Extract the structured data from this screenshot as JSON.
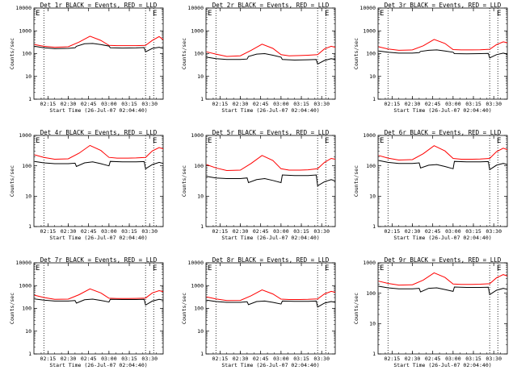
{
  "figure": {
    "colors": {
      "events": "#000000",
      "lld": "#ff0000",
      "axes": "#000000",
      "background": "#ffffff"
    }
  },
  "chart_data": [
    {
      "type": "line",
      "title": "Det 1r BLACK = Events, RED = LLD",
      "xlabel": "Start Time (26-Jul-07 02:04:40)",
      "ylabel": "Counts/sec",
      "yscale": "log",
      "ylim": [
        1,
        10000
      ],
      "y_ticks": [
        "1",
        "10",
        "100",
        "1000",
        "10000"
      ],
      "x_ticks": [
        "02:15",
        "02:30",
        "02:45",
        "03:00",
        "03:15",
        "03:30"
      ],
      "x_tick_minutes": [
        15,
        30,
        45,
        60,
        75,
        90
      ],
      "xlim_minutes": [
        4.67,
        100
      ],
      "dotted_lines_minutes": [
        12,
        87,
        93
      ],
      "annotation": "E",
      "series": [
        {
          "name": "LLD",
          "color": "#ff0000",
          "x_minutes": [
            5,
            12,
            20,
            30,
            38,
            46,
            54,
            60,
            66,
            74,
            80,
            87,
            92,
            97,
            100
          ],
          "y": [
            250,
            210,
            190,
            200,
            320,
            580,
            380,
            230,
            225,
            225,
            225,
            230,
            380,
            560,
            410
          ]
        },
        {
          "name": "Events",
          "color": "#000000",
          "x_minutes": [
            5,
            12,
            20,
            30,
            35,
            36,
            42,
            48,
            54,
            60,
            61,
            70,
            80,
            86,
            87,
            92,
            97,
            100
          ],
          "y": [
            210,
            180,
            165,
            170,
            180,
            210,
            270,
            280,
            250,
            215,
            180,
            175,
            178,
            185,
            120,
            170,
            190,
            170
          ]
        }
      ]
    },
    {
      "type": "line",
      "title": "Det 2r BLACK = Events, RED = LLD",
      "xlabel": "Start Time (26-Jul-07 02:04:40)",
      "ylabel": "Counts/sec",
      "yscale": "log",
      "ylim": [
        1,
        10000
      ],
      "y_ticks": [
        "1",
        "10",
        "100",
        "1000",
        "10000"
      ],
      "x_ticks": [
        "02:15",
        "02:30",
        "02:45",
        "03:00",
        "03:15",
        "03:30"
      ],
      "x_tick_minutes": [
        15,
        30,
        45,
        60,
        75,
        90
      ],
      "xlim_minutes": [
        4.67,
        100
      ],
      "dotted_lines_minutes": [
        12,
        87,
        93
      ],
      "annotation": "E",
      "series": [
        {
          "name": "LLD",
          "color": "#ff0000",
          "x_minutes": [
            5,
            12,
            20,
            30,
            38,
            46,
            54,
            60,
            66,
            74,
            80,
            87,
            92,
            97,
            100
          ],
          "y": [
            120,
            95,
            75,
            80,
            140,
            260,
            170,
            90,
            80,
            82,
            85,
            90,
            160,
            210,
            190
          ]
        },
        {
          "name": "Events",
          "color": "#000000",
          "x_minutes": [
            5,
            12,
            20,
            30,
            35,
            36,
            42,
            48,
            54,
            60,
            61,
            70,
            80,
            86,
            87,
            92,
            97,
            100
          ],
          "y": [
            70,
            60,
            55,
            55,
            58,
            75,
            95,
            100,
            85,
            70,
            55,
            52,
            54,
            55,
            35,
            50,
            60,
            55
          ]
        }
      ]
    },
    {
      "type": "line",
      "title": "Det 3r BLACK = Events, RED = LLD",
      "xlabel": "Start Time (26-Jul-07 02:04:40)",
      "ylabel": "Counts/sec",
      "yscale": "log",
      "ylim": [
        1,
        10000
      ],
      "y_ticks": [
        "1",
        "10",
        "100",
        "1000",
        "10000"
      ],
      "x_ticks": [
        "02:15",
        "02:30",
        "02:45",
        "03:00",
        "03:15",
        "03:30"
      ],
      "x_tick_minutes": [
        15,
        30,
        45,
        60,
        75,
        90
      ],
      "xlim_minutes": [
        4.67,
        100
      ],
      "dotted_lines_minutes": [
        12,
        87,
        93
      ],
      "annotation": "E",
      "series": [
        {
          "name": "LLD",
          "color": "#ff0000",
          "x_minutes": [
            5,
            12,
            20,
            30,
            38,
            46,
            54,
            60,
            66,
            74,
            80,
            87,
            92,
            97,
            100
          ],
          "y": [
            200,
            160,
            140,
            145,
            220,
            420,
            280,
            150,
            145,
            145,
            148,
            155,
            250,
            330,
            300
          ]
        },
        {
          "name": "Events",
          "color": "#000000",
          "x_minutes": [
            5,
            12,
            20,
            30,
            35,
            36,
            42,
            48,
            54,
            60,
            61,
            70,
            80,
            86,
            87,
            92,
            97,
            100
          ],
          "y": [
            130,
            115,
            105,
            105,
            110,
            125,
            140,
            145,
            130,
            115,
            100,
            98,
            100,
            102,
            65,
            90,
            105,
            95
          ]
        }
      ]
    },
    {
      "type": "line",
      "title": "Det 4r BLACK = Events, RED = LLD",
      "xlabel": "Start Time (26-Jul-07 02:04:40)",
      "ylabel": "Counts/sec",
      "yscale": "log",
      "ylim": [
        1,
        1000
      ],
      "y_ticks": [
        "1",
        "10",
        "100",
        "1000"
      ],
      "x_ticks": [
        "02:15",
        "02:30",
        "02:45",
        "03:00",
        "03:15",
        "03:30"
      ],
      "x_tick_minutes": [
        15,
        30,
        45,
        60,
        75,
        90
      ],
      "xlim_minutes": [
        4.67,
        100
      ],
      "dotted_lines_minutes": [
        12,
        87,
        93
      ],
      "annotation": "E",
      "series": [
        {
          "name": "LLD",
          "color": "#ff0000",
          "x_minutes": [
            5,
            12,
            20,
            30,
            38,
            46,
            54,
            60,
            66,
            74,
            80,
            87,
            92,
            97,
            100
          ],
          "y": [
            230,
            190,
            165,
            170,
            260,
            470,
            320,
            190,
            180,
            180,
            182,
            190,
            310,
            400,
            360
          ]
        },
        {
          "name": "Events",
          "color": "#000000",
          "x_minutes": [
            5,
            12,
            20,
            30,
            35,
            36,
            42,
            48,
            54,
            60,
            61,
            70,
            80,
            86,
            87,
            92,
            97,
            100
          ],
          "y": [
            140,
            125,
            118,
            118,
            122,
            95,
            125,
            135,
            118,
            100,
            140,
            135,
            135,
            138,
            80,
            110,
            130,
            120
          ]
        }
      ]
    },
    {
      "type": "line",
      "title": "Det 5r BLACK = Events, RED = LLD",
      "xlabel": "Start Time (26-Jul-07 02:04:40)",
      "ylabel": "Counts/sec",
      "yscale": "log",
      "ylim": [
        1,
        1000
      ],
      "y_ticks": [
        "1",
        "10",
        "100",
        "1000"
      ],
      "x_ticks": [
        "02:15",
        "02:30",
        "02:45",
        "03:00",
        "03:15",
        "03:30"
      ],
      "x_tick_minutes": [
        15,
        30,
        45,
        60,
        75,
        90
      ],
      "xlim_minutes": [
        4.67,
        100
      ],
      "dotted_lines_minutes": [
        12,
        87,
        93
      ],
      "annotation": "E",
      "series": [
        {
          "name": "LLD",
          "color": "#ff0000",
          "x_minutes": [
            5,
            12,
            20,
            30,
            38,
            46,
            54,
            60,
            66,
            74,
            80,
            87,
            92,
            97,
            100
          ],
          "y": [
            110,
            85,
            70,
            72,
            120,
            220,
            150,
            80,
            72,
            72,
            74,
            80,
            130,
            175,
            165
          ]
        },
        {
          "name": "Events",
          "color": "#000000",
          "x_minutes": [
            5,
            12,
            20,
            30,
            35,
            36,
            42,
            48,
            54,
            60,
            61,
            70,
            80,
            86,
            87,
            92,
            97,
            100
          ],
          "y": [
            45,
            40,
            38,
            38,
            40,
            28,
            35,
            38,
            33,
            28,
            50,
            48,
            48,
            50,
            22,
            30,
            35,
            32
          ]
        }
      ]
    },
    {
      "type": "line",
      "title": "Det 6r BLACK = Events, RED = LLD",
      "xlabel": "Start Time (26-Jul-07 02:04:40)",
      "ylabel": "Counts/sec",
      "yscale": "log",
      "ylim": [
        1,
        1000
      ],
      "y_ticks": [
        "1",
        "10",
        "100",
        "1000"
      ],
      "x_ticks": [
        "02:15",
        "02:30",
        "02:45",
        "03:00",
        "03:15",
        "03:30"
      ],
      "x_tick_minutes": [
        15,
        30,
        45,
        60,
        75,
        90
      ],
      "xlim_minutes": [
        4.67,
        100
      ],
      "dotted_lines_minutes": [
        12,
        87,
        93
      ],
      "annotation": "E",
      "series": [
        {
          "name": "LLD",
          "color": "#ff0000",
          "x_minutes": [
            5,
            12,
            20,
            30,
            38,
            46,
            54,
            60,
            66,
            74,
            80,
            87,
            92,
            97,
            100
          ],
          "y": [
            220,
            180,
            155,
            160,
            250,
            460,
            310,
            175,
            165,
            165,
            168,
            175,
            290,
            380,
            340
          ]
        },
        {
          "name": "Events",
          "color": "#000000",
          "x_minutes": [
            5,
            12,
            20,
            30,
            35,
            36,
            42,
            48,
            54,
            60,
            61,
            70,
            80,
            86,
            87,
            92,
            97,
            100
          ],
          "y": [
            150,
            130,
            120,
            120,
            125,
            85,
            105,
            110,
            95,
            80,
            140,
            135,
            135,
            138,
            75,
            105,
            120,
            110
          ]
        }
      ]
    },
    {
      "type": "line",
      "title": "Det 7r BLACK = Events, RED = LLD",
      "xlabel": "Start Time (26-Jul-07 02:04:40)",
      "ylabel": "Counts/sec",
      "yscale": "log",
      "ylim": [
        1,
        10000
      ],
      "y_ticks": [
        "1",
        "10",
        "100",
        "1000",
        "10000"
      ],
      "x_ticks": [
        "02:15",
        "02:30",
        "02:45",
        "03:00",
        "03:15",
        "03:30"
      ],
      "x_tick_minutes": [
        15,
        30,
        45,
        60,
        75,
        90
      ],
      "xlim_minutes": [
        4.67,
        100
      ],
      "dotted_lines_minutes": [
        12,
        87,
        93
      ],
      "annotation": "E",
      "series": [
        {
          "name": "LLD",
          "color": "#ff0000",
          "x_minutes": [
            5,
            12,
            20,
            30,
            38,
            46,
            54,
            60,
            66,
            74,
            80,
            87,
            92,
            97,
            100
          ],
          "y": [
            380,
            300,
            250,
            255,
            400,
            720,
            480,
            280,
            270,
            270,
            275,
            285,
            480,
            600,
            550
          ]
        },
        {
          "name": "Events",
          "color": "#000000",
          "x_minutes": [
            5,
            12,
            20,
            30,
            35,
            36,
            42,
            48,
            54,
            60,
            61,
            70,
            80,
            86,
            87,
            92,
            97,
            100
          ],
          "y": [
            260,
            230,
            210,
            210,
            220,
            170,
            240,
            255,
            225,
            190,
            250,
            245,
            245,
            250,
            140,
            210,
            250,
            230
          ]
        }
      ]
    },
    {
      "type": "line",
      "title": "Det 8r BLACK = Events, RED = LLD",
      "xlabel": "Start Time (26-Jul-07 02:04:40)",
      "ylabel": "Counts/sec",
      "yscale": "log",
      "ylim": [
        1,
        10000
      ],
      "y_ticks": [
        "1",
        "10",
        "100",
        "1000",
        "10000"
      ],
      "x_ticks": [
        "02:15",
        "02:30",
        "02:45",
        "03:00",
        "03:15",
        "03:30"
      ],
      "x_tick_minutes": [
        15,
        30,
        45,
        60,
        75,
        90
      ],
      "xlim_minutes": [
        4.67,
        100
      ],
      "dotted_lines_minutes": [
        12,
        87,
        93
      ],
      "annotation": "E",
      "series": [
        {
          "name": "LLD",
          "color": "#ff0000",
          "x_minutes": [
            5,
            12,
            20,
            30,
            38,
            46,
            54,
            60,
            66,
            74,
            80,
            87,
            92,
            97,
            100
          ],
          "y": [
            320,
            260,
            220,
            225,
            360,
            650,
            430,
            255,
            245,
            245,
            250,
            260,
            430,
            560,
            510
          ]
        },
        {
          "name": "Events",
          "color": "#000000",
          "x_minutes": [
            5,
            12,
            20,
            30,
            35,
            36,
            42,
            48,
            54,
            60,
            61,
            70,
            80,
            86,
            87,
            92,
            97,
            100
          ],
          "y": [
            230,
            200,
            185,
            185,
            195,
            145,
            200,
            210,
            185,
            155,
            210,
            205,
            205,
            210,
            115,
            170,
            200,
            185
          ]
        }
      ]
    },
    {
      "type": "line",
      "title": "Det 9r BLACK = Events, RED = LLD",
      "xlabel": "Start Time (26-Jul-07 02:04:40)",
      "ylabel": "Counts/sec",
      "yscale": "log",
      "ylim": [
        1,
        1000
      ],
      "y_ticks": [
        "1",
        "10",
        "100",
        "1000"
      ],
      "x_ticks": [
        "02:15",
        "02:30",
        "02:45",
        "03:00",
        "03:15",
        "03:30"
      ],
      "x_tick_minutes": [
        15,
        30,
        45,
        60,
        75,
        90
      ],
      "xlim_minutes": [
        4.67,
        100
      ],
      "dotted_lines_minutes": [
        12,
        87,
        93
      ],
      "annotation": "E",
      "series": [
        {
          "name": "LLD",
          "color": "#ff0000",
          "x_minutes": [
            5,
            12,
            20,
            30,
            38,
            46,
            54,
            60,
            66,
            74,
            80,
            87,
            92,
            97,
            100
          ],
          "y": [
            250,
            210,
            185,
            190,
            270,
            470,
            330,
            200,
            195,
            195,
            198,
            205,
            320,
            410,
            370
          ]
        },
        {
          "name": "Events",
          "color": "#000000",
          "x_minutes": [
            5,
            12,
            20,
            30,
            35,
            36,
            42,
            48,
            54,
            60,
            61,
            70,
            80,
            86,
            87,
            92,
            97,
            100
          ],
          "y": [
            170,
            150,
            140,
            140,
            145,
            110,
            145,
            150,
            132,
            115,
            160,
            155,
            155,
            158,
            90,
            125,
            145,
            135
          ]
        }
      ]
    }
  ]
}
